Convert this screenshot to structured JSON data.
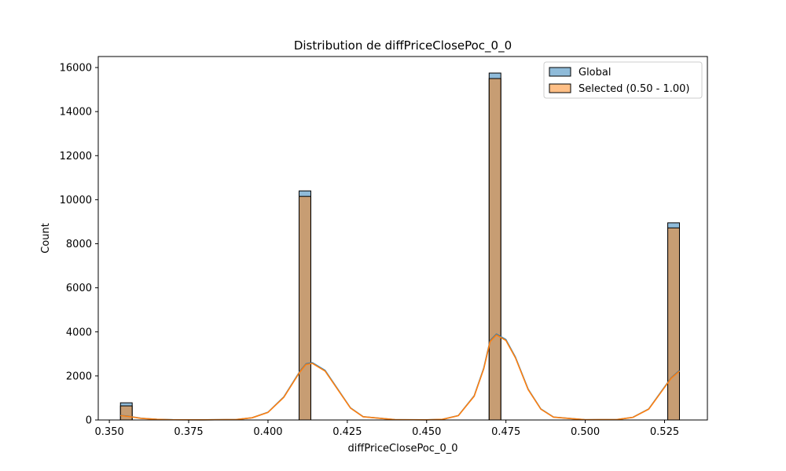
{
  "chart_data": {
    "type": "bar",
    "title": "Distribution de diffPriceClosePoc_0_0",
    "xlabel": "diffPriceClosePoc_0_0",
    "ylabel": "Count",
    "xlim": [
      0.3465,
      0.5385
    ],
    "ylim": [
      0,
      16500
    ],
    "xticks": [
      "0.350",
      "0.375",
      "0.400",
      "0.425",
      "0.450",
      "0.475",
      "0.500",
      "0.525"
    ],
    "xtick_values": [
      0.35,
      0.375,
      0.4,
      0.425,
      0.45,
      0.475,
      0.5,
      0.525
    ],
    "yticks": [
      "0",
      "2000",
      "4000",
      "6000",
      "8000",
      "10000",
      "12000",
      "14000",
      "16000"
    ],
    "ytick_values": [
      0,
      2000,
      4000,
      6000,
      8000,
      10000,
      12000,
      14000,
      16000
    ],
    "legend_position": "upper right",
    "grid": false,
    "series": [
      {
        "name": "Global",
        "color": "#1f77b4",
        "bins": [
          {
            "x0": 0.3535,
            "x1": 0.3572,
            "count": 780
          },
          {
            "x0": 0.4098,
            "x1": 0.4135,
            "count": 10400
          },
          {
            "x0": 0.4697,
            "x1": 0.4734,
            "count": 15750
          },
          {
            "x0": 0.526,
            "x1": 0.5297,
            "count": 8950
          }
        ],
        "kde": {
          "x": [
            0.3535,
            0.356,
            0.36,
            0.365,
            0.37,
            0.38,
            0.39,
            0.395,
            0.4,
            0.405,
            0.41,
            0.412,
            0.414,
            0.418,
            0.422,
            0.426,
            0.43,
            0.44,
            0.45,
            0.455,
            0.46,
            0.465,
            0.468,
            0.47,
            0.472,
            0.475,
            0.478,
            0.482,
            0.486,
            0.49,
            0.5,
            0.51,
            0.515,
            0.52,
            0.524,
            0.527,
            0.5297
          ],
          "y": [
            210,
            170,
            80,
            30,
            10,
            5,
            20,
            100,
            350,
            1050,
            2200,
            2550,
            2600,
            2250,
            1400,
            550,
            150,
            15,
            5,
            30,
            200,
            1100,
            2350,
            3600,
            3900,
            3650,
            2850,
            1400,
            500,
            130,
            10,
            20,
            120,
            500,
            1300,
            1900,
            2250
          ]
        }
      },
      {
        "name": "Selected (0.50 - 1.00)",
        "color": "#ff7f0e",
        "bins": [
          {
            "x0": 0.3535,
            "x1": 0.3572,
            "count": 640
          },
          {
            "x0": 0.4098,
            "x1": 0.4135,
            "count": 10150
          },
          {
            "x0": 0.4697,
            "x1": 0.4734,
            "count": 15500
          },
          {
            "x0": 0.526,
            "x1": 0.5297,
            "count": 8720
          }
        ],
        "kde": {
          "x": [
            0.3535,
            0.356,
            0.36,
            0.365,
            0.37,
            0.38,
            0.39,
            0.395,
            0.4,
            0.405,
            0.41,
            0.412,
            0.414,
            0.418,
            0.422,
            0.426,
            0.43,
            0.44,
            0.45,
            0.455,
            0.46,
            0.465,
            0.468,
            0.47,
            0.472,
            0.475,
            0.478,
            0.482,
            0.486,
            0.49,
            0.5,
            0.51,
            0.515,
            0.52,
            0.524,
            0.527,
            0.5297
          ],
          "y": [
            200,
            160,
            75,
            28,
            9,
            5,
            20,
            100,
            345,
            1030,
            2170,
            2520,
            2570,
            2220,
            1380,
            540,
            145,
            15,
            5,
            30,
            195,
            1080,
            2320,
            3560,
            3860,
            3610,
            2820,
            1380,
            490,
            128,
            10,
            20,
            118,
            490,
            1280,
            1880,
            2220
          ]
        }
      }
    ]
  }
}
